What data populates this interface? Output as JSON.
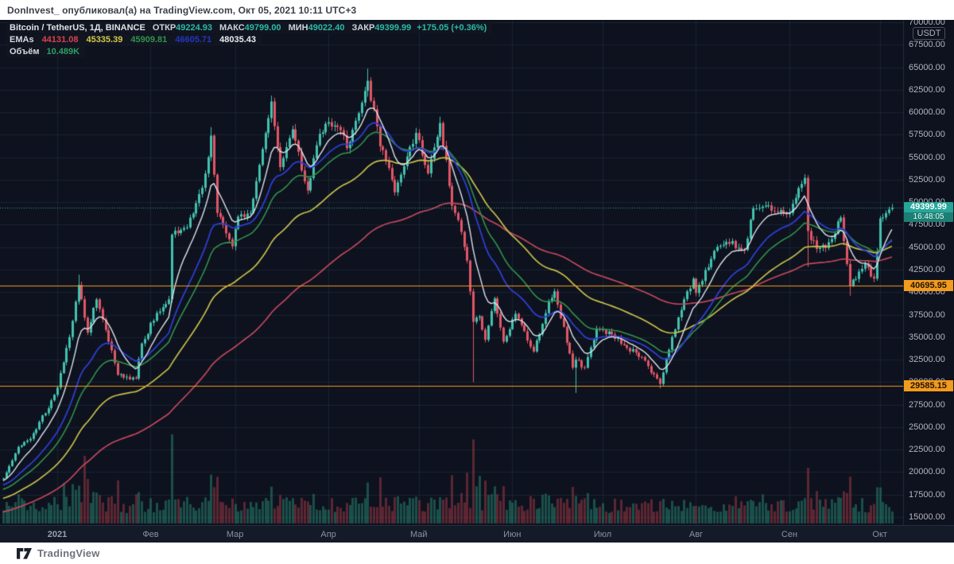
{
  "header": {
    "text": "DonInvest_ опубликовал(а) на TradingView.com, Окт 05, 2021 10:11 UTC+3"
  },
  "legend": {
    "title": "Bitcoin / TetherUS, 1Д, BINANCE",
    "ohlc": [
      {
        "label": "ОТКР",
        "value": "49224.93"
      },
      {
        "label": "МАКС",
        "value": "49799.00"
      },
      {
        "label": "МИН",
        "value": "49022.40"
      },
      {
        "label": "ЗАКР",
        "value": "49399.99"
      }
    ],
    "change": "+175.05 (+0.36%)",
    "emas_label": "EMAs",
    "ema_values": [
      {
        "value": "44131.08",
        "color": "#d8424f"
      },
      {
        "value": "45335.39",
        "color": "#d6ca4a"
      },
      {
        "value": "45909.81",
        "color": "#35924d"
      },
      {
        "value": "46605.71",
        "color": "#2434c4"
      },
      {
        "value": "48035.43",
        "color": "#e8ebf2"
      }
    ],
    "volume_label": "Объём",
    "volume_value": "10.489K"
  },
  "price_scale": {
    "unit": "USDT",
    "ticks": [
      "70000.00",
      "67500.00",
      "65000.00",
      "62500.00",
      "60000.00",
      "57500.00",
      "55000.00",
      "52500.00",
      "50000.00",
      "47500.00",
      "45000.00",
      "42500.00",
      "40000.00",
      "37500.00",
      "35000.00",
      "32500.00",
      "30000.00",
      "27500.00",
      "25000.00",
      "22500.00",
      "20000.00",
      "17500.00",
      "15000.00"
    ],
    "last": {
      "value": "49399.99",
      "countdown": "16:48:05",
      "price": 49399.99
    },
    "levels": [
      {
        "value": "40695.95",
        "price": 40695.95
      },
      {
        "value": "29585.15",
        "price": 29585.15
      }
    ]
  },
  "time_scale": {
    "labels": [
      {
        "text": "2021",
        "day": 0,
        "year": true
      },
      {
        "text": "Фев",
        "day": 31
      },
      {
        "text": "Мар",
        "day": 59
      },
      {
        "text": "Апр",
        "day": 90
      },
      {
        "text": "Май",
        "day": 120
      },
      {
        "text": "Июн",
        "day": 151
      },
      {
        "text": "Июл",
        "day": 181
      },
      {
        "text": "Авг",
        "day": 212
      },
      {
        "text": "Сен",
        "day": 243
      },
      {
        "text": "Окт",
        "day": 273
      }
    ]
  },
  "footer": {
    "brand": "TradingView"
  },
  "chart_data": {
    "type": "candlestick+volume",
    "symbol": "Bitcoin / TetherUS",
    "interval": "1Д",
    "exchange": "BINANCE",
    "y_axis_range": [
      15000,
      70000
    ],
    "grid": true,
    "last_price": 49399.99,
    "last_candle": {
      "open": 49224.93,
      "high": 49799.0,
      "low": 49022.4,
      "close": 49399.99
    },
    "levels": [
      40695.95,
      29585.15
    ],
    "anchors": [
      [
        -18,
        19300
      ],
      [
        -15,
        21300
      ],
      [
        -13,
        22800
      ],
      [
        -9,
        23700
      ],
      [
        -5,
        26300
      ],
      [
        -3,
        27100
      ],
      [
        0,
        29400
      ],
      [
        2,
        32200
      ],
      [
        5,
        36800
      ],
      [
        7,
        40800
      ],
      [
        10,
        35500
      ],
      [
        13,
        39200
      ],
      [
        16,
        35800
      ],
      [
        20,
        30800
      ],
      [
        26,
        30400
      ],
      [
        28,
        34300
      ],
      [
        33,
        37700
      ],
      [
        37,
        39200
      ],
      [
        38,
        46400
      ],
      [
        43,
        47200
      ],
      [
        48,
        51600
      ],
      [
        51,
        57400
      ],
      [
        53,
        48800
      ],
      [
        58,
        45100
      ],
      [
        60,
        48400
      ],
      [
        64,
        48800
      ],
      [
        68,
        55900
      ],
      [
        71,
        61200
      ],
      [
        74,
        53900
      ],
      [
        78,
        58100
      ],
      [
        82,
        52300
      ],
      [
        83,
        51300
      ],
      [
        87,
        57600
      ],
      [
        90,
        58900
      ],
      [
        94,
        58000
      ],
      [
        96,
        56000
      ],
      [
        100,
        59900
      ],
      [
        103,
        63500
      ],
      [
        107,
        56200
      ],
      [
        110,
        53800
      ],
      [
        112,
        51100
      ],
      [
        115,
        54000
      ],
      [
        119,
        57700
      ],
      [
        123,
        53200
      ],
      [
        127,
        58800
      ],
      [
        131,
        49600
      ],
      [
        134,
        46700
      ],
      [
        136,
        43500
      ],
      [
        138,
        36700
      ],
      [
        140,
        37300
      ],
      [
        142,
        34700
      ],
      [
        145,
        39300
      ],
      [
        148,
        34500
      ],
      [
        152,
        37600
      ],
      [
        158,
        33400
      ],
      [
        163,
        39000
      ],
      [
        165,
        40100
      ],
      [
        171,
        31600
      ],
      [
        172,
        32500
      ],
      [
        175,
        31600
      ],
      [
        179,
        35900
      ],
      [
        184,
        35300
      ],
      [
        189,
        33800
      ],
      [
        194,
        32800
      ],
      [
        200,
        29800
      ],
      [
        203,
        33600
      ],
      [
        206,
        37200
      ],
      [
        211,
        41500
      ],
      [
        212,
        39900
      ],
      [
        218,
        44600
      ],
      [
        222,
        45600
      ],
      [
        228,
        44700
      ],
      [
        231,
        49300
      ],
      [
        234,
        49500
      ],
      [
        239,
        48900
      ],
      [
        243,
        48800
      ],
      [
        248,
        52700
      ],
      [
        249,
        46800
      ],
      [
        252,
        44800
      ],
      [
        255,
        44900
      ],
      [
        260,
        48300
      ],
      [
        263,
        40700
      ],
      [
        268,
        43200
      ],
      [
        271,
        41500
      ],
      [
        273,
        48200
      ],
      [
        276,
        49200
      ],
      [
        277,
        49399.99
      ]
    ],
    "wick_overrides": [
      [
        7,
        41950,
        null
      ],
      [
        51,
        58350,
        null
      ],
      [
        71,
        61850,
        null
      ],
      [
        103,
        64850,
        null
      ],
      [
        127,
        59500,
        null
      ],
      [
        138,
        null,
        30000
      ],
      [
        172,
        null,
        28800
      ],
      [
        200,
        null,
        29300
      ],
      [
        249,
        null,
        42800
      ],
      [
        263,
        null,
        39600
      ]
    ],
    "volume_spikes": [
      [
        2,
        1.8
      ],
      [
        5,
        1.6
      ],
      [
        7,
        2.1
      ],
      [
        9,
        2.6
      ],
      [
        10,
        2.4
      ],
      [
        13,
        1.7
      ],
      [
        20,
        1.6
      ],
      [
        26,
        1.4
      ],
      [
        38,
        2.1
      ],
      [
        43,
        1.4
      ],
      [
        51,
        1.7
      ],
      [
        53,
        2.0
      ],
      [
        58,
        1.5
      ],
      [
        71,
        1.4
      ],
      [
        83,
        1.3
      ],
      [
        103,
        1.5
      ],
      [
        107,
        1.6
      ],
      [
        112,
        1.7
      ],
      [
        131,
        2.1
      ],
      [
        134,
        1.6
      ],
      [
        136,
        1.8
      ],
      [
        138,
        4.3
      ],
      [
        139,
        2.9
      ],
      [
        140,
        2.0
      ],
      [
        142,
        2.2
      ],
      [
        145,
        1.5
      ],
      [
        148,
        1.6
      ],
      [
        158,
        1.3
      ],
      [
        165,
        1.3
      ],
      [
        171,
        1.6
      ],
      [
        172,
        1.9
      ],
      [
        175,
        1.3
      ],
      [
        200,
        1.5
      ],
      [
        206,
        1.3
      ],
      [
        211,
        1.3
      ],
      [
        234,
        1.2
      ],
      [
        249,
        2.3
      ],
      [
        252,
        1.3
      ],
      [
        263,
        1.7
      ],
      [
        271,
        1.2
      ],
      [
        273,
        1.6
      ]
    ],
    "emas": [
      {
        "period": 110,
        "color": "#c2485c",
        "seed": 15500,
        "width": 1.7
      },
      {
        "period": 55,
        "color": "#c9bf4a",
        "seed": 17000,
        "width": 1.7
      },
      {
        "period": 30,
        "color": "#33914c",
        "seed": 18000,
        "width": 1.6
      },
      {
        "period": 21,
        "color": "#2e3ed2",
        "seed": 18500,
        "width": 1.8
      },
      {
        "period": 9,
        "color": "#dde2ec",
        "seed": 19000,
        "width": 1.4
      }
    ],
    "colors": {
      "bg": "#0d121e",
      "grid": "rgba(39,49,72,0.5)",
      "border": "#242d3e",
      "up": "#43c1af",
      "down": "#e25666",
      "vol_up": "rgba(41,140,115,0.5)",
      "vol_down": "rgba(170,58,70,0.5)",
      "level": "#f29b1d",
      "last_line": "#2aa89a"
    }
  }
}
